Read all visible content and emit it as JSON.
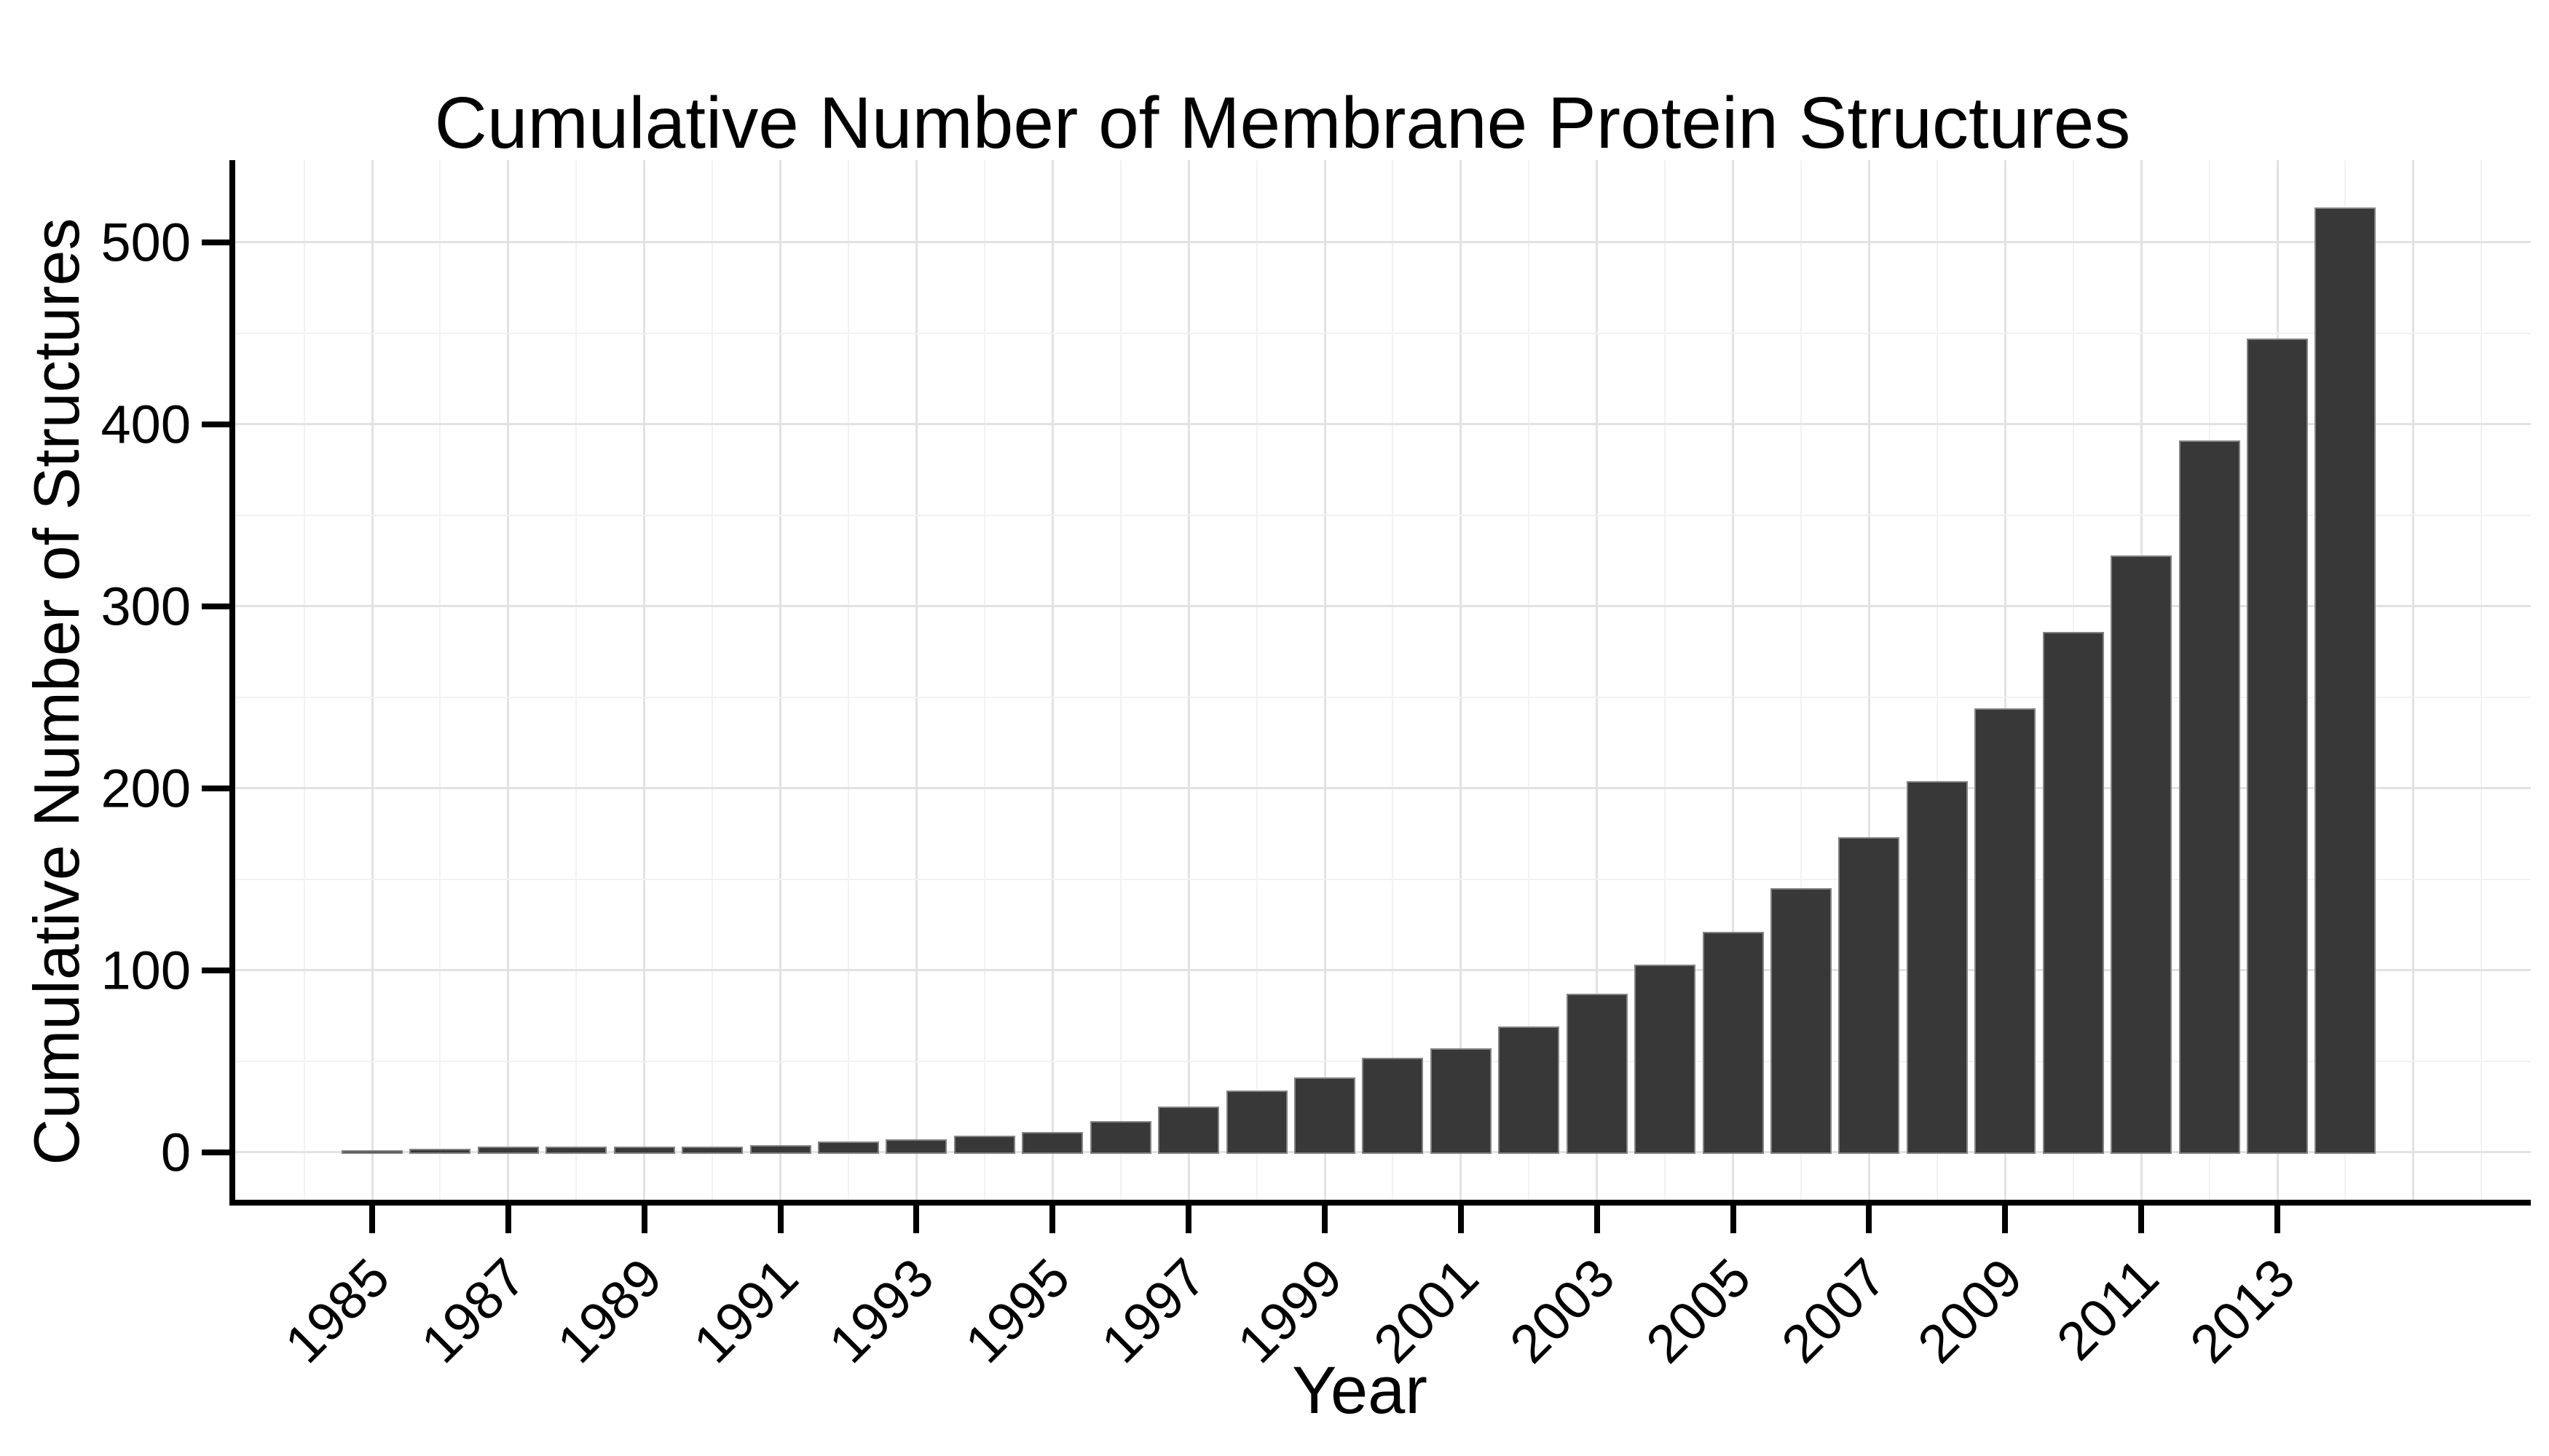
{
  "chart_data": {
    "type": "bar",
    "title": "Cumulative Number of Membrane Protein Structures",
    "xlabel": "Year",
    "ylabel": "Cumulative Number of Structures",
    "categories": [
      1985,
      1986,
      1987,
      1988,
      1989,
      1990,
      1991,
      1992,
      1993,
      1994,
      1995,
      1996,
      1997,
      1998,
      1999,
      2000,
      2001,
      2002,
      2003,
      2004,
      2005,
      2006,
      2007,
      2008,
      2009,
      2010,
      2011,
      2012,
      2013,
      2014
    ],
    "values": [
      1,
      2,
      3,
      3,
      3,
      3,
      4,
      6,
      7,
      9,
      11,
      17,
      25,
      34,
      41,
      52,
      57,
      69,
      87,
      103,
      121,
      145,
      173,
      204,
      244,
      286,
      328,
      391,
      447,
      519
    ],
    "ylim": [
      -26,
      545
    ],
    "yticks": [
      0,
      100,
      200,
      300,
      400,
      500
    ],
    "ytick_minor": [
      50,
      150,
      250,
      350,
      450
    ],
    "xticks": [
      1985,
      1987,
      1989,
      1991,
      1993,
      1995,
      1997,
      1999,
      2001,
      2003,
      2005,
      2007,
      2009,
      2011,
      2013
    ],
    "grid": true,
    "legend": "none",
    "bar_color": "#383838",
    "bar_edge_color": "#828282",
    "major_grid_color": "#e2e2e2",
    "minor_grid_color": "#f2f2f2",
    "axis_color": "#000000"
  }
}
